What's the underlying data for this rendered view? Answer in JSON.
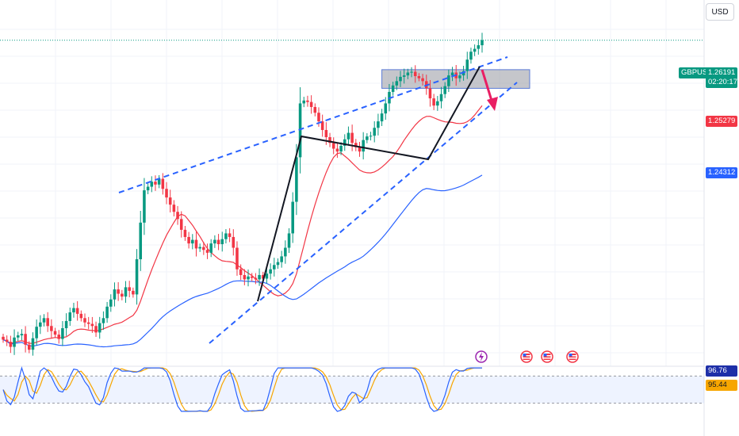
{
  "toolbar": {
    "currency_label": "USD"
  },
  "instrument": {
    "symbol": "GBPUSD",
    "last_price": "1.26191",
    "countdown": "02:20:17",
    "ma_fast_label": "1.25279",
    "ma_slow_label": "1.24312"
  },
  "oscillator": {
    "k_label": "96.76",
    "d_label": "95.44",
    "upper": 80,
    "lower": 20
  },
  "colors": {
    "up": "#089981",
    "down": "#f23645",
    "ma_fast": "#f23645",
    "ma_slow": "#2962ff",
    "trend": "#2962ff",
    "arrow": "#e91e63",
    "zone": "#9598a1",
    "osc_k": "#2962ff",
    "osc_d": "#f7a600"
  },
  "events": [
    {
      "icon": "lightning-icon"
    },
    {
      "icon": "us-flag-icon"
    },
    {
      "icon": "us-flag-icon"
    },
    {
      "icon": "us-flag-icon"
    }
  ],
  "chart_data": {
    "type": "candlestick",
    "price_range": [
      1.2165,
      1.2675
    ],
    "series": [
      {
        "name": "",
        "values": [
          1.2202,
          1.2199,
          1.2192,
          1.2205,
          1.2208,
          1.221,
          1.2195,
          1.2188,
          1.2204,
          1.222,
          1.2226,
          1.2232,
          1.2221,
          1.2214,
          1.2209,
          1.2203,
          1.2218,
          1.2228,
          1.224,
          1.2246,
          1.2238,
          1.2232,
          1.2226,
          1.2224,
          1.2221,
          1.2212,
          1.2225,
          1.2232,
          1.2248,
          1.2258,
          1.2272,
          1.2266,
          1.2262,
          1.2275,
          1.227,
          1.2265,
          1.2314,
          1.2365,
          1.241,
          1.2415,
          1.2422,
          1.2418,
          1.2426,
          1.2412,
          1.24,
          1.239,
          1.238,
          1.237,
          1.2355,
          1.2345,
          1.2336,
          1.2341,
          1.2329,
          1.2331,
          1.2327,
          1.2323,
          1.2336,
          1.2341,
          1.2335,
          1.2342,
          1.235,
          1.2345,
          1.233,
          1.23,
          1.2292,
          1.2286,
          1.229,
          1.2288,
          1.2286,
          1.2292,
          1.2287,
          1.2294,
          1.23,
          1.2306,
          1.231,
          1.2318,
          1.233,
          1.235,
          1.2394,
          1.2456,
          1.2531,
          1.2535,
          1.2533,
          1.2526,
          1.2518,
          1.2506,
          1.2494,
          1.2484,
          1.2476,
          1.2468,
          1.2464,
          1.2472,
          1.2481,
          1.249,
          1.2476,
          1.247,
          1.2464,
          1.248,
          1.2485,
          1.2486,
          1.2497,
          1.2506,
          1.2517,
          1.2531,
          1.2547,
          1.2556,
          1.2562,
          1.2568,
          1.257,
          1.2574,
          1.2575,
          1.2569,
          1.2566,
          1.2562,
          1.2552,
          1.2538,
          1.2528,
          1.2534,
          1.2544,
          1.2555,
          1.257,
          1.2574,
          1.2566,
          1.257,
          1.2576,
          1.2592,
          1.2603,
          1.2607,
          1.2612,
          1.2619
        ]
      }
    ],
    "moving_averages": [
      {
        "name": "",
        "type": "fast",
        "end": 1.25279
      },
      {
        "name": "",
        "type": "slow",
        "end": 1.24312
      }
    ],
    "annotations": [
      "rising wedge trendlines",
      "supply zone",
      "expected drop arrow"
    ],
    "grid": true
  }
}
